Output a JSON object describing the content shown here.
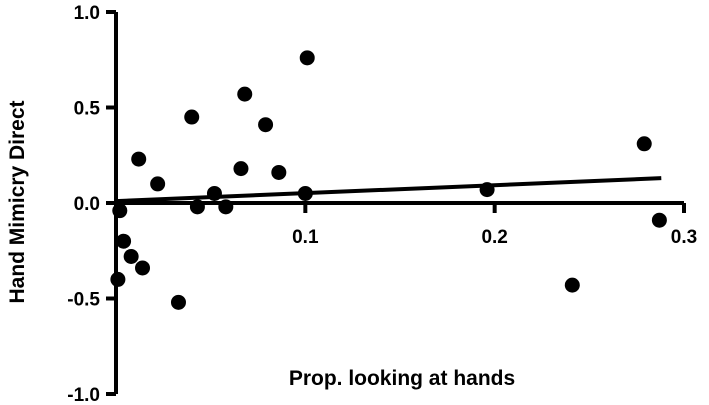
{
  "chart_data": {
    "type": "scatter",
    "title": "",
    "xlabel": "Prop. looking at hands",
    "ylabel": "Hand Mimicry Direct",
    "xlim": [
      0,
      0.3
    ],
    "ylim": [
      -1.0,
      1.0
    ],
    "x_ticks": [
      "0.1",
      "0.2",
      "0.3"
    ],
    "x_tick_values": [
      0.1,
      0.2,
      0.3
    ],
    "y_ticks": [
      "1.0",
      "0.5",
      "0.0",
      "-0.5",
      "-1.0"
    ],
    "y_tick_values": [
      1.0,
      0.5,
      0.0,
      -0.5,
      -1.0
    ],
    "grid": false,
    "legend": "none",
    "point_color": "#000000",
    "points": [
      {
        "x": 0.001,
        "y": -0.4
      },
      {
        "x": 0.002,
        "y": -0.04
      },
      {
        "x": 0.004,
        "y": -0.2
      },
      {
        "x": 0.008,
        "y": -0.28
      },
      {
        "x": 0.012,
        "y": 0.23
      },
      {
        "x": 0.014,
        "y": -0.34
      },
      {
        "x": 0.022,
        "y": 0.1
      },
      {
        "x": 0.033,
        "y": -0.52
      },
      {
        "x": 0.04,
        "y": 0.45
      },
      {
        "x": 0.043,
        "y": -0.02
      },
      {
        "x": 0.052,
        "y": 0.05
      },
      {
        "x": 0.058,
        "y": -0.02
      },
      {
        "x": 0.066,
        "y": 0.18
      },
      {
        "x": 0.068,
        "y": 0.57
      },
      {
        "x": 0.079,
        "y": 0.41
      },
      {
        "x": 0.086,
        "y": 0.16
      },
      {
        "x": 0.1,
        "y": 0.05
      },
      {
        "x": 0.101,
        "y": 0.76
      },
      {
        "x": 0.196,
        "y": 0.07
      },
      {
        "x": 0.241,
        "y": -0.43
      },
      {
        "x": 0.279,
        "y": 0.31
      },
      {
        "x": 0.287,
        "y": -0.09
      }
    ],
    "regression_line": {
      "x": [
        0,
        0.288
      ],
      "y": [
        0.01,
        0.13
      ]
    }
  }
}
